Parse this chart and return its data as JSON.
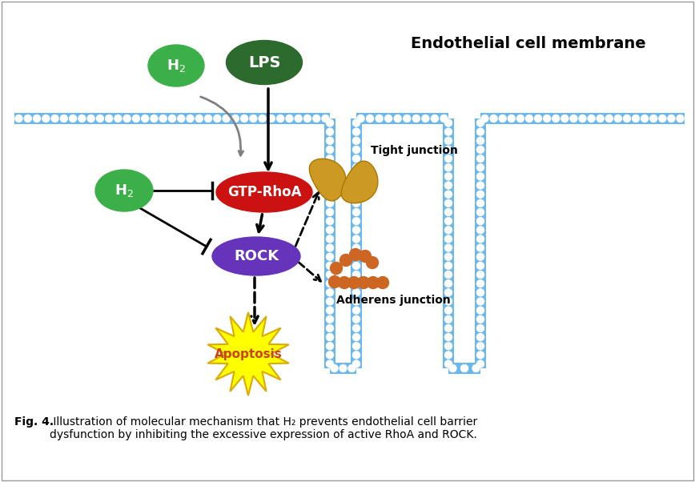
{
  "bg_color": "#ffffff",
  "border_color": "#aaaaaa",
  "membrane_color": "#6bb8f0",
  "h2_color": "#3cb048",
  "lps_color": "#2d6a2d",
  "gtp_color": "#cc1111",
  "rock_color": "#6633bb",
  "apoptosis_fill": "#ffff00",
  "apoptosis_edge": "#ddaa00",
  "apoptosis_text": "#cc4400",
  "junction_fill": "#cc9922",
  "adherens_fill": "#cc6622",
  "title": "Endothelial cell membrane",
  "caption_bold": "Fig. 4.",
  "caption_rest": " Illustration of molecular mechanism that H₂ prevents endothelial cell barrier\ndysfunction by inhibiting the excessive expression of active RhoA and ROCK."
}
